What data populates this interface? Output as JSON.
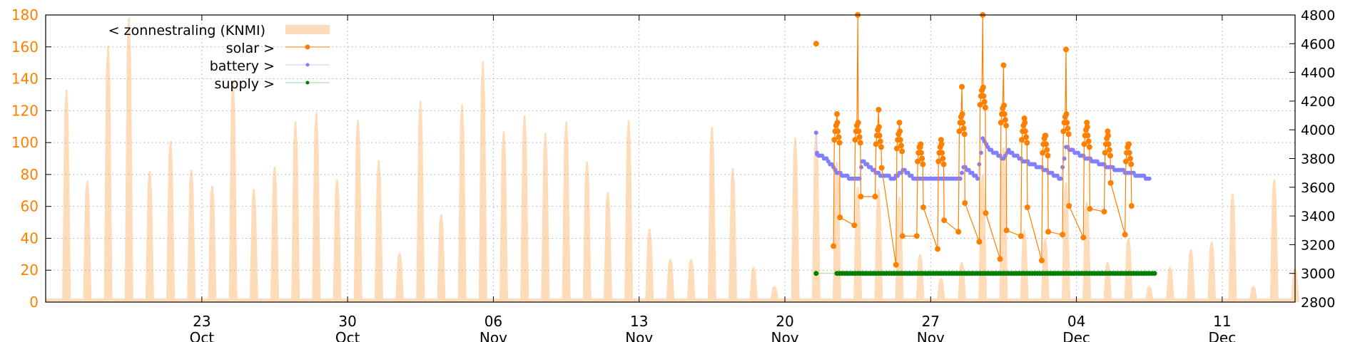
{
  "chart_data": {
    "type": "line",
    "title": "",
    "xlabel": "",
    "ylabel_left": "",
    "ylabel_right": "",
    "grid": true,
    "legend_placement": "top-left",
    "x_range": [
      "10-15 12",
      "12-14 12"
    ],
    "y_left": {
      "range": [
        0,
        180
      ],
      "ticks": [
        "0",
        "20",
        "40",
        "60",
        "80",
        "100",
        "120",
        "140",
        "160",
        "180"
      ],
      "color": "#ff7f00"
    },
    "y_right": {
      "range": [
        2800,
        4800
      ],
      "ticks": [
        "2800",
        "3000",
        "3200",
        "3400",
        "3600",
        "3800",
        "4000",
        "4200",
        "4400",
        "4600",
        "4800"
      ]
    },
    "x_ticks": [
      {
        "date": "10-23",
        "day": "23",
        "month": "Oct"
      },
      {
        "date": "10-30",
        "day": "30",
        "month": "Oct"
      },
      {
        "date": "11-06",
        "day": "06",
        "month": "Nov"
      },
      {
        "date": "11-13",
        "day": "13",
        "month": "Nov"
      },
      {
        "date": "11-20",
        "day": "20",
        "month": "Nov"
      },
      {
        "date": "11-27",
        "day": "27",
        "month": "Nov"
      },
      {
        "date": "12-04",
        "day": "04",
        "month": "Dec"
      },
      {
        "date": "12-11",
        "day": "11",
        "month": "Dec"
      }
    ],
    "series": [
      {
        "name": "< zonnestraling (KNMI)",
        "axis": "left",
        "style": "filledcurve",
        "color": "#ffdcb9",
        "start_date": "10-16",
        "daily_peaks": [
          133,
          76,
          161,
          178,
          82,
          101,
          83,
          73,
          138,
          71,
          85,
          113,
          119,
          77,
          114,
          89,
          31,
          126,
          55,
          124,
          151,
          107,
          117,
          106,
          113,
          88,
          69,
          114,
          46,
          27,
          27,
          110,
          84,
          22,
          10,
          103,
          105,
          88,
          72,
          71,
          66,
          30,
          15,
          25,
          80,
          97,
          45,
          40,
          75,
          63,
          25,
          40,
          10,
          22,
          33,
          38,
          68,
          10,
          77,
          21
        ]
      },
      {
        "name": "solar >",
        "axis": "right",
        "style": "linespoints",
        "color": "#ff7f00",
        "days": [
          {
            "date": "11-21",
            "peak": 4600,
            "typical": 4600,
            "low": 4600
          },
          {
            "date": "11-22",
            "peak": 4110,
            "typical": 3990,
            "low": 3190
          },
          {
            "date": "11-23",
            "peak": 4800,
            "typical": 3990,
            "low": 3335
          },
          {
            "date": "11-24",
            "peak": 4140,
            "typical": 3960,
            "low": 3535
          },
          {
            "date": "11-25",
            "peak": 4050,
            "typical": 3930,
            "low": 3060
          },
          {
            "date": "11-26",
            "peak": 3880,
            "typical": 3840,
            "low": 3260
          },
          {
            "date": "11-27",
            "peak": 3930,
            "typical": 3840,
            "low": 3170
          },
          {
            "date": "11-28",
            "peak": 4300,
            "typical": 4050,
            "low": 3290
          },
          {
            "date": "11-29",
            "peak": 4800,
            "typical": 4235,
            "low": 3220
          },
          {
            "date": "11-30",
            "peak": 4450,
            "typical": 4110,
            "low": 3100
          },
          {
            "date": "12-01",
            "peak": 4080,
            "typical": 3990,
            "low": 3260
          },
          {
            "date": "12-02",
            "peak": 3960,
            "typical": 3900,
            "low": 3090
          },
          {
            "date": "12-03",
            "peak": 4560,
            "typical": 4050,
            "low": 3270
          },
          {
            "date": "12-04",
            "peak": 4050,
            "typical": 3960,
            "low": 3250
          },
          {
            "date": "12-05",
            "peak": 3990,
            "typical": 3900,
            "low": 3430
          },
          {
            "date": "12-06",
            "peak": 3900,
            "typical": 3840,
            "low": 3270
          }
        ]
      },
      {
        "name": "battery >",
        "axis": "right",
        "style": "linespoints",
        "color": "#8080ff",
        "points": [
          [
            "11-21 12",
            3980
          ],
          [
            "11-21 13",
            3830
          ],
          [
            "11-22 00",
            3800
          ],
          [
            "11-22 12",
            3700
          ],
          [
            "11-23 06",
            3660
          ],
          [
            "11-23 14",
            3660
          ],
          [
            "11-23 17",
            3780
          ],
          [
            "11-24 12",
            3690
          ],
          [
            "11-24 20",
            3680
          ],
          [
            "11-25 06",
            3660
          ],
          [
            "11-25 16",
            3720
          ],
          [
            "11-26 06",
            3660
          ],
          [
            "11-27 12",
            3660
          ],
          [
            "11-28 10",
            3660
          ],
          [
            "11-28 14",
            3740
          ],
          [
            "11-29 06",
            3660
          ],
          [
            "11-29 12",
            3930
          ],
          [
            "11-29 20",
            3860
          ],
          [
            "11-30 12",
            3800
          ],
          [
            "11-30 18",
            3850
          ],
          [
            "12-01 12",
            3780
          ],
          [
            "12-02 12",
            3720
          ],
          [
            "12-03 06",
            3660
          ],
          [
            "12-03 12",
            3880
          ],
          [
            "12-04 12",
            3800
          ],
          [
            "12-05 12",
            3740
          ],
          [
            "12-06 12",
            3700
          ],
          [
            "12-07 12",
            3660
          ]
        ]
      },
      {
        "name": "supply >",
        "axis": "right",
        "style": "linespoints",
        "color": "#008000",
        "points": [
          [
            "11-21 12",
            3000
          ],
          [
            "11-22 12",
            3000
          ],
          [
            "12-07 18",
            3000
          ]
        ]
      }
    ]
  }
}
